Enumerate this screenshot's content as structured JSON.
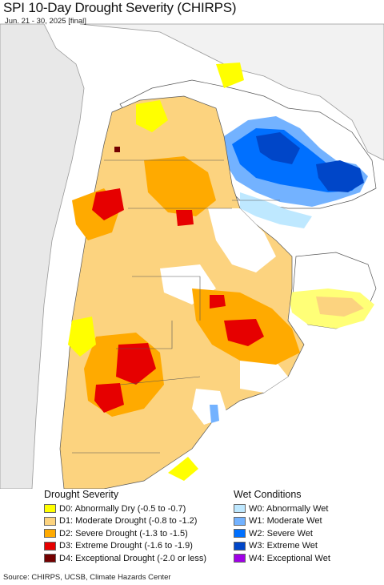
{
  "header": {
    "title": "SPI 10-Day Drought Severity (CHIRPS)",
    "subtitle": "Jun. 21 - 30, 2025 [final]"
  },
  "colors": {
    "D0": "#ffff00",
    "D1": "#fcd37f",
    "D2": "#ffaa00",
    "D3": "#e60000",
    "D4": "#730000",
    "W0": "#bee8ff",
    "W1": "#73b2ff",
    "W2": "#0070ff",
    "W3": "#0046c8",
    "W4": "#a000e6",
    "land_neutral": "#ffffff",
    "neighbor_land": "#e8e8e8",
    "ocean": "#ffffff",
    "border": "#555555"
  },
  "legend": {
    "drought_title": "Drought Severity",
    "wet_title": "Wet Conditions",
    "drought_items": [
      {
        "key": "D0",
        "label": "D0: Abnormally Dry (-0.5 to -0.7)"
      },
      {
        "key": "D1",
        "label": "D1: Moderate Drought (-0.8 to -1.2)"
      },
      {
        "key": "D2",
        "label": "D2: Severe Drought (-1.3 to -1.5)"
      },
      {
        "key": "D3",
        "label": "D3: Extreme Drought (-1.6 to -1.9)"
      },
      {
        "key": "D4",
        "label": "D4: Exceptional Drought (-2.0 or less)"
      }
    ],
    "wet_items": [
      {
        "key": "W0",
        "label": "W0: Abnormally Wet"
      },
      {
        "key": "W1",
        "label": "W1: Moderate Wet"
      },
      {
        "key": "W2",
        "label": "W2: Severe Wet"
      },
      {
        "key": "W3",
        "label": "W3: Extreme Wet"
      },
      {
        "key": "W4",
        "label": "W4: Exceptional Wet"
      }
    ]
  },
  "footer": {
    "source": "Source: CHIRPS, UCSB, Climate Hazards Center"
  }
}
